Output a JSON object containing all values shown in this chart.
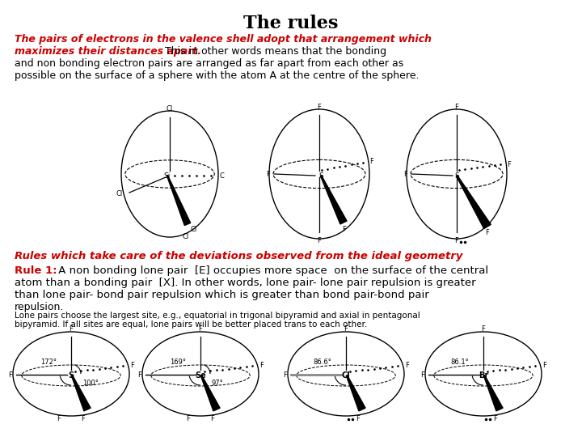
{
  "title": "The rules",
  "bg_color": "#ffffff",
  "red_color": "#cc0000",
  "black_color": "#000000",
  "para1_red_line1": "The pairs of electrons in the valence shell adopt that arrangement which",
  "para1_red_line2": "maximizes their distances apart.",
  "para1_black_line2": " This in other words means that the bonding",
  "para1_black_line3": "and non bonding electron pairs are arranged as far apart from each other as",
  "para1_black_line4": "possible on the surface of a sphere with the atom A at the centre of the sphere.",
  "section2": "Rules which take care of the deviations observed from the ideal geometry",
  "rule1_bold": "Rule 1:",
  "rule1_rest": " A non bonding lone pair  [E] occupies more space  on the surface of the central",
  "rule1_line2": "atom than a bonding pair  [X]. In other words, lone pair- lone pair repulsion is greater",
  "rule1_line3": "than lone pair- bond pair repulsion which is greater than bond pair-bond pair",
  "rule1_line4": "repulsion.",
  "rule1_small1": "Lone pairs choose the largest site, e.g., equatorial in trigonal bipyramid and axial in pentagonal",
  "rule1_small2": "bipyramid. If all sites are equal, lone pairs will be better placed trans to each other."
}
